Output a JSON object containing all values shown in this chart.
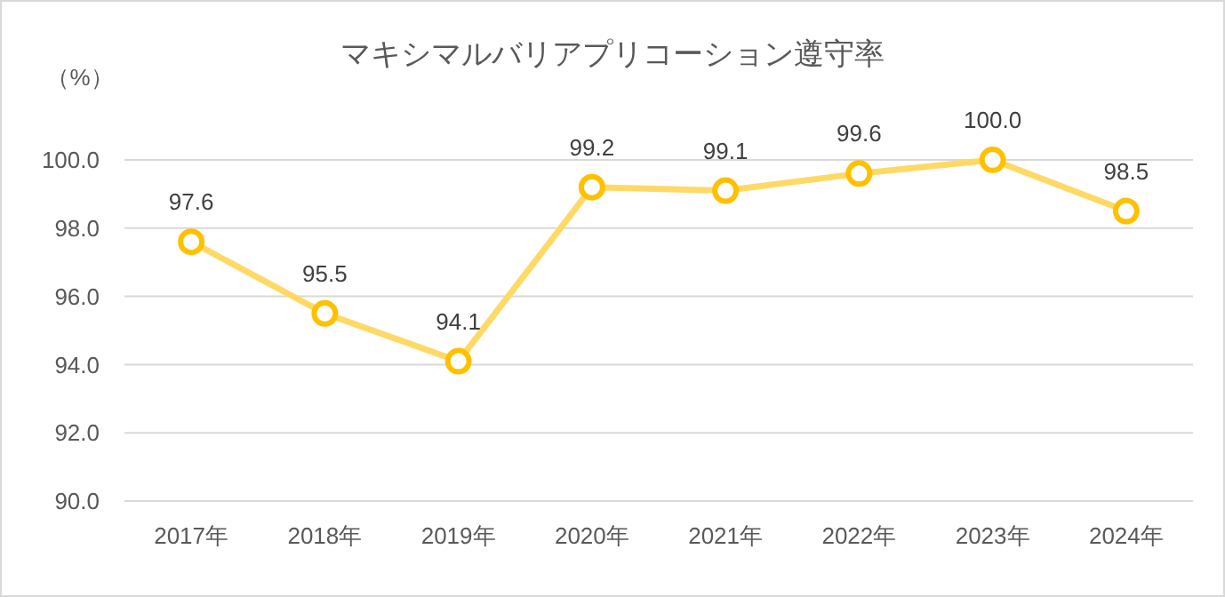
{
  "chart_data": {
    "type": "line",
    "title": "マキシマルバリアプリコーション遵守率",
    "ylabel": "（%）",
    "categories": [
      "2017年",
      "2018年",
      "2019年",
      "2020年",
      "2021年",
      "2022年",
      "2023年",
      "2024年"
    ],
    "series": [
      {
        "color": "#ffd966",
        "values": [
          97.6,
          95.5,
          94.1,
          99.2,
          99.1,
          99.6,
          100.0,
          98.5
        ],
        "value_labels": [
          "97.6",
          "95.5",
          "94.1",
          "99.2",
          "99.1",
          "99.6",
          "100.0",
          "98.5"
        ]
      }
    ],
    "ylim": [
      90,
      100
    ],
    "yticks": [
      {
        "value": 90,
        "label": "90.0"
      },
      {
        "value": 92,
        "label": "92.0"
      },
      {
        "value": 94,
        "label": "94.0"
      },
      {
        "value": 96,
        "label": "96.0"
      },
      {
        "value": 98,
        "label": "98.0"
      },
      {
        "value": 100,
        "label": "100.0"
      }
    ],
    "grid": "y",
    "marker": "circle",
    "line_style": "solid"
  }
}
